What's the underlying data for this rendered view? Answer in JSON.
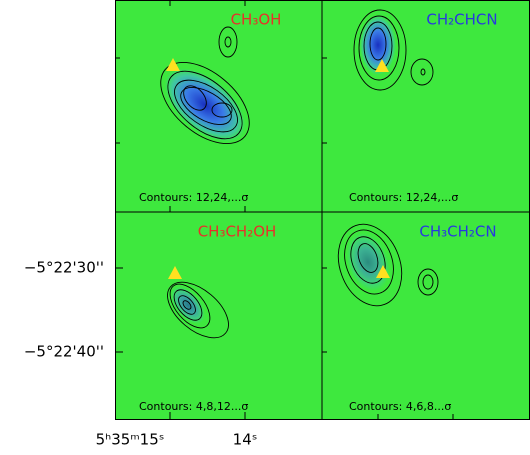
{
  "panels": [
    {
      "molecule": "CH₃OH",
      "contours": "Contours: 12,24,...σ"
    },
    {
      "molecule": "CH₂CHCN",
      "contours": "Contours: 12,24,...σ"
    },
    {
      "molecule": "CH₃CH₂OH",
      "contours": "Contours: 4,8,12...σ"
    },
    {
      "molecule": "CH₃CH₂CN",
      "contours": "Contours: 4,6,8...σ"
    }
  ],
  "y_axis": {
    "ticks": [
      "−5°22'30''",
      "−5°22'40''"
    ]
  },
  "x_axis": {
    "ticks": [
      "5ʰ35ᵐ15ˢ",
      "14ˢ"
    ]
  }
}
